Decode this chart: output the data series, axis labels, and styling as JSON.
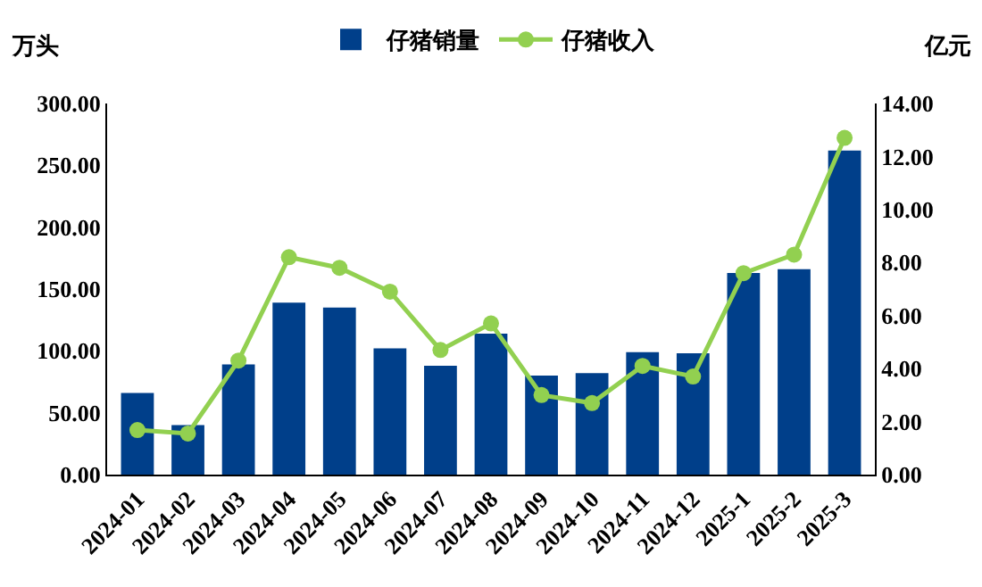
{
  "chart_data": {
    "type": "bar",
    "ylabel": "万头",
    "y2label": "亿元",
    "categories": [
      "2024-01",
      "2024-02",
      "2024-03",
      "2024-04",
      "2024-05",
      "2024-06",
      "2024-07",
      "2024-08",
      "2024-09",
      "2024-10",
      "2024-11",
      "2024-12",
      "2025-1",
      "2025-2",
      "2025-3"
    ],
    "series": [
      {
        "name": "仔猪销量",
        "color": "#003f8a",
        "values": [
          66,
          40,
          89,
          139,
          135,
          102,
          88,
          114,
          80,
          82,
          99,
          98,
          163,
          166,
          262
        ]
      },
      {
        "name": "仔猪收入",
        "type": "line",
        "axis": "y2",
        "color": "#92d050",
        "marker": "circle",
        "values": [
          1.68,
          1.55,
          4.3,
          8.2,
          7.8,
          6.9,
          4.7,
          5.7,
          3.0,
          2.7,
          4.1,
          3.7,
          7.6,
          8.3,
          12.7
        ]
      }
    ],
    "ylim": [
      0,
      300
    ],
    "yticks": [
      {
        "value": 0,
        "label": "0.00"
      },
      {
        "value": 50,
        "label": "50.00"
      },
      {
        "value": 100,
        "label": "100.00"
      },
      {
        "value": 150,
        "label": "150.00"
      },
      {
        "value": 200,
        "label": "200.00"
      },
      {
        "value": 250,
        "label": "250.00"
      },
      {
        "value": 300,
        "label": "300.00"
      }
    ],
    "y2lim": [
      0,
      14
    ],
    "y2ticks": [
      {
        "value": 0,
        "label": "0.00"
      },
      {
        "value": 2,
        "label": "2.00"
      },
      {
        "value": 4,
        "label": "4.00"
      },
      {
        "value": 6,
        "label": "6.00"
      },
      {
        "value": 8,
        "label": "8.00"
      },
      {
        "value": 10,
        "label": "10.00"
      },
      {
        "value": 12,
        "label": "12.00"
      },
      {
        "value": 14,
        "label": "14.00"
      }
    ],
    "grid": false,
    "legend": "top"
  }
}
